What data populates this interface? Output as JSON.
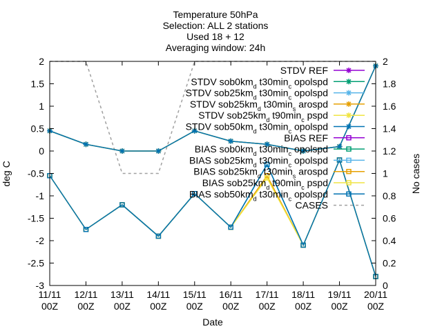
{
  "chart_data": {
    "type": "line",
    "title_lines": [
      "Temperature 50hPa",
      "Selection: ALL      2 stations",
      "Used 18 + 12",
      "Averaging window: 24h"
    ],
    "xlabel": "Date",
    "ylabel": "deg C",
    "y2label": "No cases",
    "x_ticks": [
      {
        "l1": "11/11",
        "l2": "00Z"
      },
      {
        "l1": "12/11",
        "l2": "00Z"
      },
      {
        "l1": "13/11",
        "l2": "00Z"
      },
      {
        "l1": "14/11",
        "l2": "00Z"
      },
      {
        "l1": "15/11",
        "l2": "00Z"
      },
      {
        "l1": "16/11",
        "l2": "00Z"
      },
      {
        "l1": "17/11",
        "l2": "00Z"
      },
      {
        "l1": "18/11",
        "l2": "00Z"
      },
      {
        "l1": "19/11",
        "l2": "00Z"
      },
      {
        "l1": "20/11",
        "l2": "00Z"
      }
    ],
    "y_ticks": [
      "2",
      "1.5",
      "1",
      "0.5",
      "0",
      "-0.5",
      "-1",
      "-1.5",
      "-2",
      "-2.5",
      "-3"
    ],
    "y2_ticks": [
      "2",
      "1.8",
      "1.6",
      "1.4",
      "1.2",
      "1",
      "0.8",
      "0.6",
      "0.4",
      "0.2",
      "0"
    ],
    "ylim": [
      -3,
      2
    ],
    "y2lim": [
      0,
      2
    ],
    "grid": false,
    "legend_position": "top-right",
    "colors": {
      "purple": "#9400d3",
      "green": "#009e73",
      "sky": "#56b4e9",
      "orange": "#e69f00",
      "yellow": "#f0e442",
      "blue": "#0072b2",
      "gray": "#a0a0a0"
    },
    "series": [
      {
        "name": "STDV REF",
        "color": "purple",
        "marker": "star",
        "axis": "y",
        "values": [
          null,
          null,
          null,
          null,
          null,
          null,
          null,
          null,
          null,
          null
        ]
      },
      {
        "name": "STDV sob0km_d t30min_c opolspd",
        "color": "green",
        "marker": "star",
        "axis": "y",
        "values": [
          0.45,
          0.15,
          0.0,
          0.0,
          0.45,
          0.22,
          0.15,
          0.0,
          0.1,
          1.9
        ]
      },
      {
        "name": "STDV sob25km_d t30min_c opolspd",
        "color": "sky",
        "marker": "star",
        "axis": "y",
        "values": [
          0.45,
          0.15,
          0.0,
          0.0,
          0.45,
          0.22,
          0.15,
          0.0,
          0.1,
          1.9
        ]
      },
      {
        "name": "STDV sob25km_d t30min_s arospd",
        "color": "orange",
        "marker": "star",
        "axis": "y",
        "values": [
          0.45,
          0.15,
          0.0,
          0.0,
          0.45,
          0.22,
          0.15,
          0.0,
          0.1,
          1.9
        ]
      },
      {
        "name": "STDV sob25km_d t90min_c pspd",
        "color": "yellow",
        "marker": "star",
        "axis": "y",
        "values": [
          0.45,
          0.15,
          0.0,
          0.0,
          0.45,
          0.22,
          0.15,
          0.0,
          0.1,
          1.9
        ]
      },
      {
        "name": "STDV sob50km_d t30min_c opolspd",
        "color": "blue",
        "marker": "star",
        "axis": "y",
        "values": [
          0.45,
          0.15,
          0.0,
          0.0,
          0.45,
          0.22,
          0.15,
          0.0,
          0.1,
          1.9
        ]
      },
      {
        "name": "BIAS REF",
        "color": "purple",
        "marker": "square",
        "axis": "y",
        "values": [
          null,
          null,
          null,
          null,
          null,
          null,
          null,
          null,
          null,
          null
        ]
      },
      {
        "name": "BIAS sob0km_d t30min_c opolspd",
        "color": "green",
        "marker": "square",
        "axis": "y",
        "values": [
          -0.55,
          -1.75,
          -1.2,
          -1.9,
          -0.95,
          -1.7,
          -0.3,
          -2.1,
          -0.2,
          -2.8
        ]
      },
      {
        "name": "BIAS sob25km_d t30min_c opolspd",
        "color": "sky",
        "marker": "square",
        "axis": "y",
        "values": [
          -0.55,
          -1.75,
          -1.2,
          -1.9,
          -0.95,
          -1.7,
          -0.3,
          -2.1,
          -0.2,
          -2.8
        ]
      },
      {
        "name": "BIAS sob25km_d t30min_s arospd",
        "color": "orange",
        "marker": "square",
        "axis": "y",
        "values": [
          -0.55,
          -1.75,
          -1.2,
          -1.9,
          -0.95,
          -1.7,
          -0.55,
          -2.1,
          -0.2,
          -2.8
        ]
      },
      {
        "name": "BIAS sob25km_d t90min_c pspd",
        "color": "yellow",
        "marker": "square",
        "axis": "y",
        "values": [
          -0.55,
          -1.75,
          -1.2,
          -1.9,
          -0.95,
          -1.7,
          -0.6,
          -2.1,
          -0.2,
          -2.8
        ]
      },
      {
        "name": "BIAS sob50km_d t30min_c opolspd",
        "color": "blue",
        "marker": "square",
        "axis": "y",
        "values": [
          -0.55,
          -1.75,
          -1.2,
          -1.9,
          -0.95,
          -1.7,
          -0.3,
          -2.1,
          -0.2,
          -2.8
        ]
      },
      {
        "name": "CASES",
        "color": "gray",
        "marker": "none",
        "dashed": true,
        "axis": "y2",
        "values": [
          2,
          2,
          1,
          1,
          2,
          2,
          2,
          2,
          2,
          2
        ]
      }
    ]
  }
}
